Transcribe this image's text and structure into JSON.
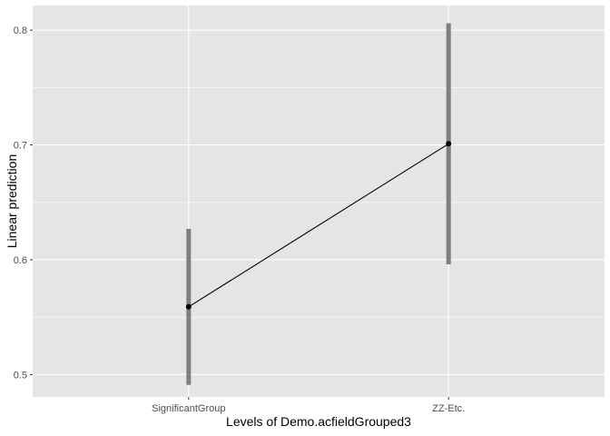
{
  "chart_data": {
    "type": "line",
    "title": "",
    "xlabel": "Levels of Demo.acfieldGrouped3",
    "ylabel": "Linear prediction",
    "categories": [
      "SignificantGroup",
      "ZZ-Etc."
    ],
    "series": [
      {
        "values": [
          0.559,
          0.701
        ],
        "lower": [
          0.491,
          0.596
        ],
        "upper": [
          0.627,
          0.806
        ]
      }
    ],
    "ylim": [
      0.4805,
      0.8215
    ],
    "yticks": [
      0.5,
      0.6,
      0.7,
      0.8
    ],
    "ytick_labels": [
      "0.5",
      "0.6",
      "0.7",
      "0.8"
    ],
    "grid": true,
    "colors": {
      "panel_background": "#e5e5e5",
      "grid": "#ffffff",
      "line": "#000000",
      "point": "#000000",
      "error_bar": "#7f7f7f"
    }
  }
}
